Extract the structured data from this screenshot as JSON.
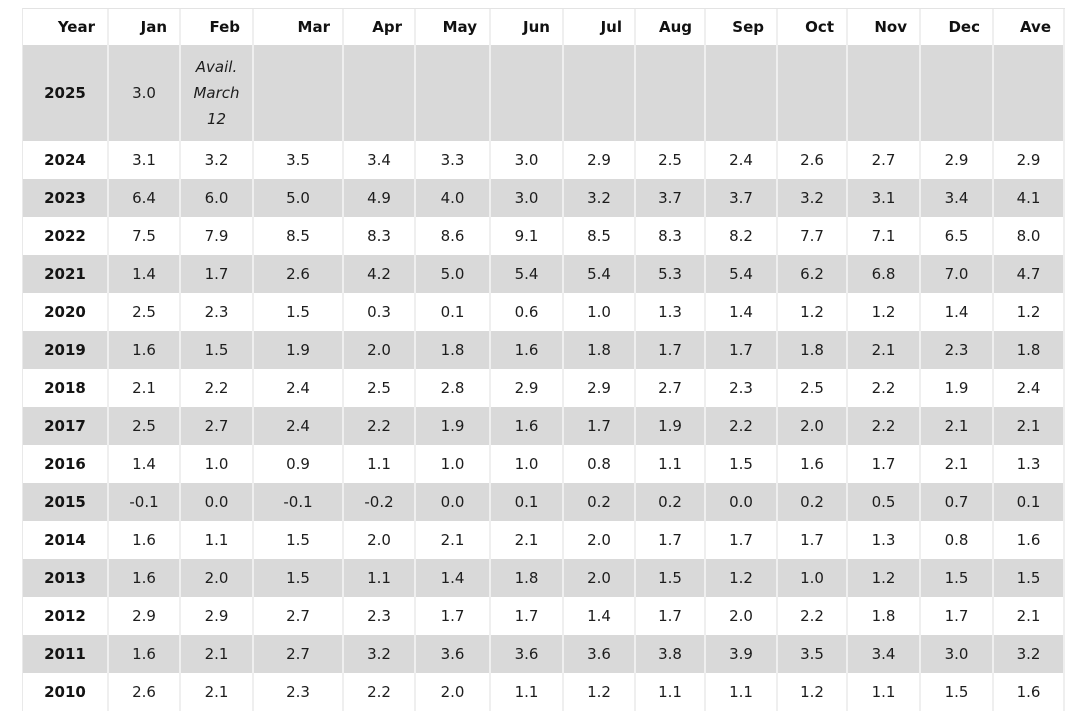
{
  "colors": {
    "stripe_background": "#d9d9d9",
    "row_background": "#ffffff",
    "text": "#1d1d1d",
    "grid_line": "#efefef"
  },
  "chart_data": {
    "type": "table",
    "title": "",
    "columns": [
      "Year",
      "Jan",
      "Feb",
      "Mar",
      "Apr",
      "May",
      "Jun",
      "Jul",
      "Aug",
      "Sep",
      "Oct",
      "Nov",
      "Dec",
      "Ave"
    ],
    "availability_note": "Avail. March 12",
    "rows": [
      {
        "year": "2025",
        "cells": [
          "3.0",
          "Avail.\nMarch\n12",
          "",
          "",
          "",
          "",
          "",
          "",
          "",
          "",
          "",
          "",
          ""
        ]
      },
      {
        "year": "2024",
        "cells": [
          "3.1",
          "3.2",
          "3.5",
          "3.4",
          "3.3",
          "3.0",
          "2.9",
          "2.5",
          "2.4",
          "2.6",
          "2.7",
          "2.9",
          "2.9"
        ]
      },
      {
        "year": "2023",
        "cells": [
          "6.4",
          "6.0",
          "5.0",
          "4.9",
          "4.0",
          "3.0",
          "3.2",
          "3.7",
          "3.7",
          "3.2",
          "3.1",
          "3.4",
          "4.1"
        ]
      },
      {
        "year": "2022",
        "cells": [
          "7.5",
          "7.9",
          "8.5",
          "8.3",
          "8.6",
          "9.1",
          "8.5",
          "8.3",
          "8.2",
          "7.7",
          "7.1",
          "6.5",
          "8.0"
        ]
      },
      {
        "year": "2021",
        "cells": [
          "1.4",
          "1.7",
          "2.6",
          "4.2",
          "5.0",
          "5.4",
          "5.4",
          "5.3",
          "5.4",
          "6.2",
          "6.8",
          "7.0",
          "4.7"
        ]
      },
      {
        "year": "2020",
        "cells": [
          "2.5",
          "2.3",
          "1.5",
          "0.3",
          "0.1",
          "0.6",
          "1.0",
          "1.3",
          "1.4",
          "1.2",
          "1.2",
          "1.4",
          "1.2"
        ]
      },
      {
        "year": "2019",
        "cells": [
          "1.6",
          "1.5",
          "1.9",
          "2.0",
          "1.8",
          "1.6",
          "1.8",
          "1.7",
          "1.7",
          "1.8",
          "2.1",
          "2.3",
          "1.8"
        ]
      },
      {
        "year": "2018",
        "cells": [
          "2.1",
          "2.2",
          "2.4",
          "2.5",
          "2.8",
          "2.9",
          "2.9",
          "2.7",
          "2.3",
          "2.5",
          "2.2",
          "1.9",
          "2.4"
        ]
      },
      {
        "year": "2017",
        "cells": [
          "2.5",
          "2.7",
          "2.4",
          "2.2",
          "1.9",
          "1.6",
          "1.7",
          "1.9",
          "2.2",
          "2.0",
          "2.2",
          "2.1",
          "2.1"
        ]
      },
      {
        "year": "2016",
        "cells": [
          "1.4",
          "1.0",
          "0.9",
          "1.1",
          "1.0",
          "1.0",
          "0.8",
          "1.1",
          "1.5",
          "1.6",
          "1.7",
          "2.1",
          "1.3"
        ]
      },
      {
        "year": "2015",
        "cells": [
          "-0.1",
          "0.0",
          "-0.1",
          "-0.2",
          "0.0",
          "0.1",
          "0.2",
          "0.2",
          "0.0",
          "0.2",
          "0.5",
          "0.7",
          "0.1"
        ]
      },
      {
        "year": "2014",
        "cells": [
          "1.6",
          "1.1",
          "1.5",
          "2.0",
          "2.1",
          "2.1",
          "2.0",
          "1.7",
          "1.7",
          "1.7",
          "1.3",
          "0.8",
          "1.6"
        ]
      },
      {
        "year": "2013",
        "cells": [
          "1.6",
          "2.0",
          "1.5",
          "1.1",
          "1.4",
          "1.8",
          "2.0",
          "1.5",
          "1.2",
          "1.0",
          "1.2",
          "1.5",
          "1.5"
        ]
      },
      {
        "year": "2012",
        "cells": [
          "2.9",
          "2.9",
          "2.7",
          "2.3",
          "1.7",
          "1.7",
          "1.4",
          "1.7",
          "2.0",
          "2.2",
          "1.8",
          "1.7",
          "2.1"
        ]
      },
      {
        "year": "2011",
        "cells": [
          "1.6",
          "2.1",
          "2.7",
          "3.2",
          "3.6",
          "3.6",
          "3.6",
          "3.8",
          "3.9",
          "3.5",
          "3.4",
          "3.0",
          "3.2"
        ]
      },
      {
        "year": "2010",
        "cells": [
          "2.6",
          "2.1",
          "2.3",
          "2.2",
          "2.0",
          "1.1",
          "1.2",
          "1.1",
          "1.1",
          "1.2",
          "1.1",
          "1.5",
          "1.6"
        ]
      }
    ],
    "layout_hints": {
      "striped_rows_start": "2025",
      "stripe_pattern": "alternating, first data row shaded",
      "year_column_bold": true,
      "header_bold": true
    }
  }
}
